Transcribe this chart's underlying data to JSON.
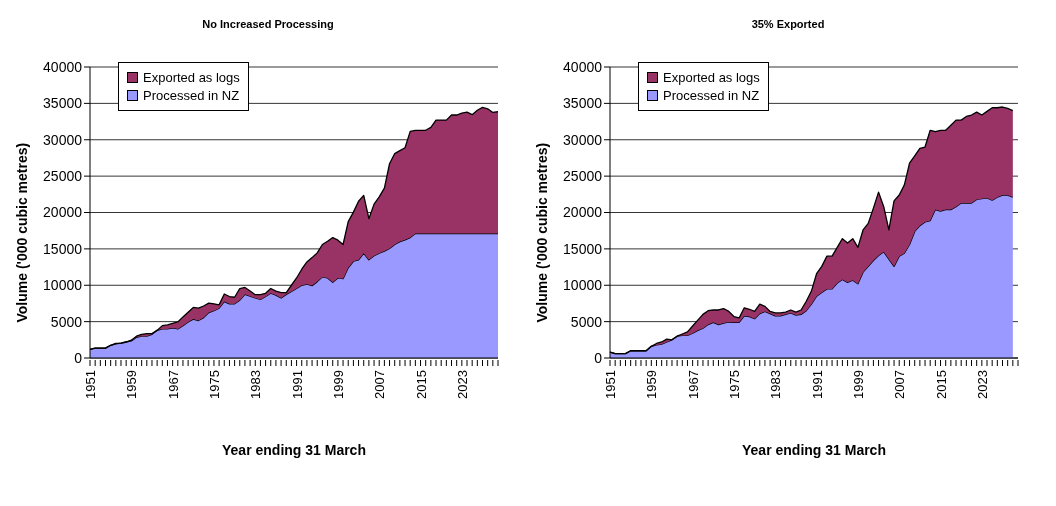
{
  "chart_data": [
    {
      "type": "area",
      "title": "No Increased Processing",
      "xlabel": "Year ending 31 March",
      "ylabel": "Volume ('000 cubic metres)",
      "stacked": true,
      "grid": "y",
      "legend": "top left",
      "ylim": [
        0,
        40000
      ],
      "yticks": [
        0,
        5000,
        10000,
        15000,
        20000,
        25000,
        30000,
        35000,
        40000
      ],
      "categories": [
        "1951",
        null,
        null,
        null,
        null,
        null,
        null,
        null,
        "1959",
        null,
        null,
        null,
        null,
        null,
        null,
        null,
        "1967",
        null,
        null,
        null,
        null,
        null,
        null,
        null,
        "1975",
        null,
        null,
        null,
        null,
        null,
        null,
        null,
        "1983",
        null,
        null,
        null,
        null,
        null,
        null,
        null,
        "1991",
        null,
        null,
        null,
        null,
        null,
        null,
        null,
        "1999",
        null,
        null,
        null,
        null,
        null,
        null,
        null,
        "2007",
        null,
        null,
        null,
        null,
        null,
        null,
        null,
        "2015",
        null,
        null,
        null,
        null,
        null,
        null,
        null,
        "2023",
        null,
        null,
        null,
        null,
        null,
        null,
        null
      ],
      "series": [
        {
          "name": "Processed in NZ",
          "color": "#9999ff",
          "values": [
            1200,
            1350,
            1350,
            1350,
            1750,
            1950,
            2050,
            2200,
            2350,
            2850,
            3000,
            3000,
            3250,
            3800,
            4000,
            4000,
            4150,
            4000,
            4450,
            4950,
            5350,
            5150,
            5550,
            6250,
            6500,
            6850,
            7750,
            7450,
            7450,
            7950,
            8750,
            8500,
            8250,
            8050,
            8450,
            8900,
            8650,
            8250,
            8750,
            9150,
            9550,
            10000,
            10150,
            9950,
            10500,
            11150,
            11000,
            10400,
            11000,
            10900,
            12400,
            13300,
            13500,
            14400,
            13500,
            14050,
            14400,
            14700,
            15050,
            15600,
            16000,
            16250,
            16550,
            17100,
            17100,
            17100,
            17100,
            17100,
            17100,
            17100,
            17100,
            17100,
            17100,
            17100,
            17100,
            17100,
            17100,
            17100,
            17100,
            17100
          ]
        },
        {
          "name": "Exported as logs",
          "color": "#993366",
          "values": [
            0,
            0,
            0,
            0,
            0,
            50,
            0,
            0,
            100,
            150,
            250,
            350,
            100,
            0,
            450,
            550,
            600,
            950,
            1200,
            1350,
            1600,
            1700,
            1600,
            1300,
            950,
            450,
            1050,
            1000,
            900,
            1600,
            950,
            700,
            450,
            650,
            450,
            650,
            550,
            750,
            250,
            850,
            1450,
            2200,
            3050,
            3850,
            3950,
            4450,
            5050,
            6150,
            5200,
            4700,
            6350,
            6750,
            8050,
            7950,
            5650,
            7100,
            7750,
            8650,
            11650,
            12500,
            12500,
            12650,
            14600,
            14200,
            14200,
            14200,
            14600,
            15600,
            15600,
            15600,
            16300,
            16300,
            16550,
            16700,
            16350,
            16950,
            17350,
            17150,
            16650,
            16750
          ]
        }
      ]
    },
    {
      "type": "area",
      "title": "35% Exported",
      "xlabel": "Year ending 31 March",
      "ylabel": "Volume ('000 cubic metres)",
      "stacked": true,
      "grid": "y",
      "legend": "top left",
      "ylim": [
        0,
        40000
      ],
      "yticks": [
        0,
        5000,
        10000,
        15000,
        20000,
        25000,
        30000,
        35000,
        40000
      ],
      "categories": [
        "1951",
        null,
        null,
        null,
        null,
        null,
        null,
        null,
        "1959",
        null,
        null,
        null,
        null,
        null,
        null,
        null,
        "1967",
        null,
        null,
        null,
        null,
        null,
        null,
        null,
        "1975",
        null,
        null,
        null,
        null,
        null,
        null,
        null,
        "1983",
        null,
        null,
        null,
        null,
        null,
        null,
        null,
        "1991",
        null,
        null,
        null,
        null,
        null,
        null,
        null,
        "1999",
        null,
        null,
        null,
        null,
        null,
        null,
        null,
        "2007",
        null,
        null,
        null,
        null,
        null,
        null,
        null,
        "2015",
        null,
        null,
        null,
        null,
        null,
        null,
        null,
        "2023",
        null,
        null,
        null,
        null,
        null,
        null,
        null
      ],
      "series": [
        {
          "name": "Processed in NZ",
          "color": "#9999ff",
          "values": [
            800,
            600,
            600,
            600,
            1000,
            1000,
            1000,
            1000,
            1600,
            1800,
            1900,
            2200,
            2500,
            3000,
            3100,
            3100,
            3400,
            3800,
            4100,
            4600,
            4900,
            4600,
            4800,
            4950,
            4900,
            4900,
            5800,
            5700,
            5400,
            6100,
            6400,
            6100,
            5800,
            5800,
            6000,
            6200,
            5900,
            6000,
            6500,
            7400,
            8500,
            9000,
            9500,
            9500,
            10300,
            10800,
            10400,
            10700,
            10200,
            11800,
            12600,
            13400,
            14100,
            14600,
            13600,
            12600,
            14000,
            14400,
            15600,
            17400,
            18200,
            18700,
            18900,
            20400,
            20200,
            20400,
            20400,
            20800,
            21300,
            21300,
            21300,
            21800,
            21900,
            22000,
            21700,
            22100,
            22400,
            22400,
            22100,
            null
          ]
        },
        {
          "name": "Exported as logs",
          "color": "#993366",
          "values": [
            0,
            0,
            0,
            0,
            0,
            0,
            0,
            0,
            0,
            200,
            300,
            400,
            0,
            0,
            200,
            500,
            1000,
            1400,
            1900,
            1900,
            1700,
            2000,
            2000,
            1450,
            800,
            600,
            1100,
            1000,
            1000,
            1300,
            700,
            300,
            400,
            400,
            300,
            400,
            400,
            600,
            1300,
            1800,
            3100,
            3600,
            4500,
            4500,
            4900,
            5600,
            5400,
            5700,
            5000,
            5800,
            5900,
            7200,
            8700,
            6200,
            4000,
            9000,
            8400,
            9400,
            11200,
            10400,
            10600,
            10300,
            12400,
            10700,
            11100,
            10900,
            11600,
            11900,
            11400,
            11900,
            12100,
            12000,
            11500,
            11900,
            12700,
            12300,
            12100,
            11900,
            11900,
            null
          ]
        }
      ]
    }
  ]
}
